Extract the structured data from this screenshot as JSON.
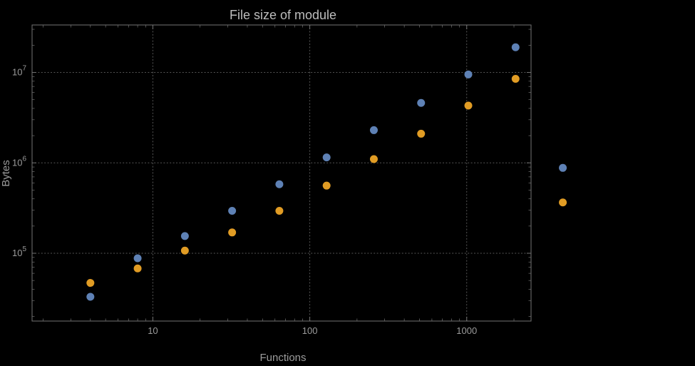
{
  "chart_data": {
    "type": "scatter",
    "title": "File size of module",
    "xlabel": "Functions",
    "ylabel": "Bytes",
    "xscale": "log",
    "yscale": "log",
    "xlim": [
      1.7,
      2570
    ],
    "ylim": [
      17800,
      33500000
    ],
    "grid": true,
    "legend": "none",
    "x_ticks": [
      {
        "value": 10,
        "label": "10"
      },
      {
        "value": 100,
        "label": "100"
      },
      {
        "value": 1000,
        "label": "1000"
      }
    ],
    "y_ticks": [
      {
        "value": 100000,
        "base": "10",
        "exp": "5"
      },
      {
        "value": 1000000,
        "base": "10",
        "exp": "6"
      },
      {
        "value": 10000000,
        "base": "10",
        "exp": "7"
      }
    ],
    "series": [
      {
        "name": "series1",
        "color": "#5e81b5",
        "x": [
          4,
          8,
          16,
          32,
          64,
          128,
          256,
          512,
          1024,
          2048,
          4096
        ],
        "y": [
          33000,
          88000,
          155000,
          295000,
          580000,
          1150000,
          2300000,
          4600000,
          9500000,
          19000000,
          880000
        ]
      },
      {
        "name": "series2",
        "color": "#e19c24",
        "x": [
          4,
          8,
          16,
          32,
          64,
          128,
          256,
          512,
          1024,
          2048,
          4096
        ],
        "y": [
          47000,
          68000,
          107000,
          170000,
          295000,
          560000,
          1100000,
          2100000,
          4300000,
          8500000,
          365000
        ]
      }
    ],
    "colors": {
      "background": "#000000",
      "frame": "#737373",
      "grid": "#575757",
      "tick_text": "#9b9b9b",
      "title_text": "#bdbdbd"
    }
  }
}
